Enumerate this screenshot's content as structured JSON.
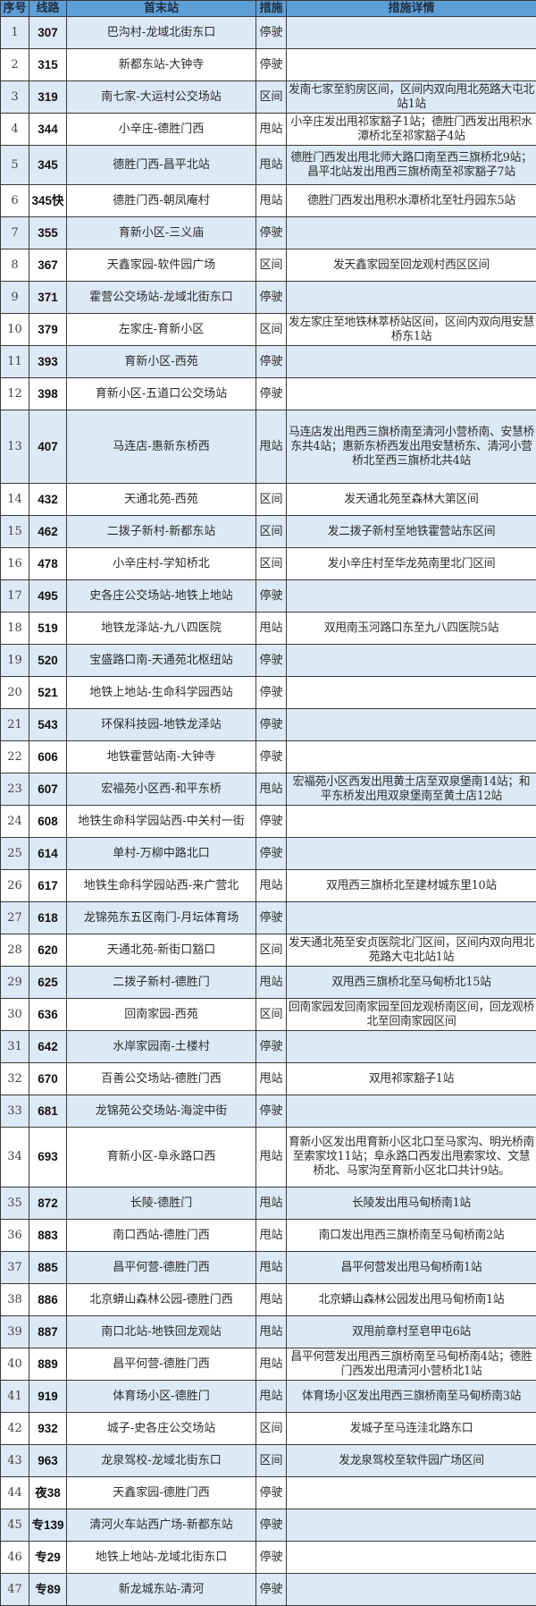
{
  "headers": [
    "序号",
    "线路",
    "首末站",
    "措施",
    "措施详情"
  ],
  "colors": {
    "header_bg": "#5e9fd8",
    "row_alt_bg": "#dce9f6",
    "border": "#3a3a3a"
  },
  "rows": [
    {
      "no": "1",
      "line": "307",
      "stops": "巴沟村-龙域北街东口",
      "measure": "停驶",
      "detail": ""
    },
    {
      "no": "2",
      "line": "315",
      "stops": "新都东站-大钟寺",
      "measure": "停驶",
      "detail": ""
    },
    {
      "no": "3",
      "line": "319",
      "stops": "南七家-大运村公交场站",
      "measure": "区间",
      "detail": "发南七家至豹房区间，区间内双向甩北苑路大屯北站1站"
    },
    {
      "no": "4",
      "line": "344",
      "stops": "小辛庄-德胜门西",
      "measure": "甩站",
      "detail": "小辛庄发出甩祁家豁子1站；德胜门西发出甩积水潭桥北至祁家豁子4站"
    },
    {
      "no": "5",
      "line": "345",
      "stops": "德胜门西-昌平北站",
      "measure": "甩站",
      "detail": "德胜门西发出甩北师大路口南至西三旗桥北9站；昌平北站发出甩西三旗桥南至祁家豁子7站"
    },
    {
      "no": "6",
      "line": "345快",
      "stops": "德胜门西-朝凤庵村",
      "measure": "甩站",
      "detail": "德胜门西发出甩积水潭桥北至牡丹园东5站"
    },
    {
      "no": "7",
      "line": "355",
      "stops": "育新小区-三义庙",
      "measure": "停驶",
      "detail": ""
    },
    {
      "no": "8",
      "line": "367",
      "stops": "天鑫家园-软件园广场",
      "measure": "区间",
      "detail": "发天鑫家园至回龙观村西区区间"
    },
    {
      "no": "9",
      "line": "371",
      "stops": "霍营公交场站-龙域北街东口",
      "measure": "停驶",
      "detail": ""
    },
    {
      "no": "10",
      "line": "379",
      "stops": "左家庄-育新小区",
      "measure": "区间",
      "detail": "发左家庄至地铁林萃桥站区间，区间内双向甩安慧桥东1站"
    },
    {
      "no": "11",
      "line": "393",
      "stops": "育新小区-西苑",
      "measure": "停驶",
      "detail": ""
    },
    {
      "no": "12",
      "line": "398",
      "stops": "育新小区-五道口公交场站",
      "measure": "停驶",
      "detail": ""
    },
    {
      "no": "13",
      "line": "407",
      "stops": "马连店-惠新东桥西",
      "measure": "甩站",
      "detail": "马连店发出甩西三旗桥南至清河小营桥南、安慧桥东共4站；惠新东桥西发出甩安慧桥东、清河小营桥北至西三旗桥北共4站"
    },
    {
      "no": "14",
      "line": "432",
      "stops": "天通北苑-西苑",
      "measure": "区间",
      "detail": "发天通北苑至森林大第区间"
    },
    {
      "no": "15",
      "line": "462",
      "stops": "二拨子新村-新都东站",
      "measure": "区间",
      "detail": "发二拨子新村至地铁霍营站东区间"
    },
    {
      "no": "16",
      "line": "478",
      "stops": "小辛庄村-学知桥北",
      "measure": "区间",
      "detail": "发小辛庄村至华龙苑南里北门区间"
    },
    {
      "no": "17",
      "line": "495",
      "stops": "史各庄公交场站-地铁上地站",
      "measure": "停驶",
      "detail": ""
    },
    {
      "no": "18",
      "line": "519",
      "stops": "地铁龙泽站-九八四医院",
      "measure": "甩站",
      "detail": "双甩南玉河路口东至九八四医院5站"
    },
    {
      "no": "19",
      "line": "520",
      "stops": "宝盛路口南-天通苑北枢纽站",
      "measure": "停驶",
      "detail": ""
    },
    {
      "no": "20",
      "line": "521",
      "stops": "地铁上地站-生命科学园西站",
      "measure": "停驶",
      "detail": ""
    },
    {
      "no": "21",
      "line": "543",
      "stops": "环保科技园-地铁龙泽站",
      "measure": "停驶",
      "detail": ""
    },
    {
      "no": "22",
      "line": "606",
      "stops": "地铁霍营站南-大钟寺",
      "measure": "停驶",
      "detail": ""
    },
    {
      "no": "23",
      "line": "607",
      "stops": "宏福苑小区西-和平东桥",
      "measure": "甩站",
      "detail": "宏福苑小区西发出甩黄土店至双泉堡南14站；和平东桥发出甩双泉堡南至黄土店12站"
    },
    {
      "no": "24",
      "line": "608",
      "stops": "地铁生命科学园站西-中关村一街",
      "measure": "停驶",
      "detail": ""
    },
    {
      "no": "25",
      "line": "614",
      "stops": "单村-万柳中路北口",
      "measure": "停驶",
      "detail": ""
    },
    {
      "no": "26",
      "line": "617",
      "stops": "地铁生命科学园站西-来广营北",
      "measure": "甩站",
      "detail": "双甩西三旗桥北至建材城东里10站"
    },
    {
      "no": "27",
      "line": "618",
      "stops": "龙锦苑东五区南门-月坛体育场",
      "measure": "停驶",
      "detail": ""
    },
    {
      "no": "28",
      "line": "620",
      "stops": "天通北苑-新街口豁口",
      "measure": "区间",
      "detail": "发天通北苑至安贞医院北门区间，区间内双向甩北苑路大屯北站1站"
    },
    {
      "no": "29",
      "line": "625",
      "stops": "二拨子新村-德胜门",
      "measure": "甩站",
      "detail": "双甩西三旗桥北至马甸桥北15站"
    },
    {
      "no": "30",
      "line": "636",
      "stops": "回南家园-西苑",
      "measure": "区间",
      "detail": "回南家园发回南家园至回龙观桥南区间，回龙观桥北至回南家园区间"
    },
    {
      "no": "31",
      "line": "642",
      "stops": "水岸家园南-土楼村",
      "measure": "停驶",
      "detail": ""
    },
    {
      "no": "32",
      "line": "670",
      "stops": "百善公交场站-德胜门西",
      "measure": "甩站",
      "detail": "双甩祁家豁子1站"
    },
    {
      "no": "33",
      "line": "681",
      "stops": "龙锦苑公交场站-海淀中街",
      "measure": "停驶",
      "detail": ""
    },
    {
      "no": "34",
      "line": "693",
      "stops": "育新小区-阜永路口西",
      "measure": "甩站",
      "detail": "育新小区发出甩育新小区北口至马家沟、明光桥南至索家坟11站；阜永路口西发出甩索家坟、文慧桥北、马家沟至育新小区北口共计9站。"
    },
    {
      "no": "35",
      "line": "872",
      "stops": "长陵-德胜门",
      "measure": "甩站",
      "detail": "长陵发出甩马甸桥南1站"
    },
    {
      "no": "36",
      "line": "883",
      "stops": "南口西站-德胜门西",
      "measure": "甩站",
      "detail": "南口发出甩西三旗桥南至马甸桥南2站"
    },
    {
      "no": "37",
      "line": "885",
      "stops": "昌平何营-德胜门西",
      "measure": "甩站",
      "detail": "昌平何营发出甩马甸桥南1站"
    },
    {
      "no": "38",
      "line": "886",
      "stops": "北京蟒山森林公园-德胜门西",
      "measure": "甩站",
      "detail": "北京蟒山森林公园发出甩马甸桥南1站"
    },
    {
      "no": "39",
      "line": "887",
      "stops": "南口北站-地铁回龙观站",
      "measure": "甩站",
      "detail": "双甩前章村至皂甲屯6站"
    },
    {
      "no": "40",
      "line": "889",
      "stops": "昌平何营-德胜门西",
      "measure": "甩站",
      "detail": "昌平何营发出甩西三旗桥南至马甸桥南4站；德胜门西发出甩清河小营桥北1站"
    },
    {
      "no": "41",
      "line": "919",
      "stops": "体育场小区-德胜门",
      "measure": "甩站",
      "detail": "体育场小区发出甩西三旗桥南至马甸桥南3站"
    },
    {
      "no": "42",
      "line": "932",
      "stops": "城子-史各庄公交场站",
      "measure": "区间",
      "detail": "发城子至马连洼北路东口"
    },
    {
      "no": "43",
      "line": "963",
      "stops": "龙泉驾校-龙域北街东口",
      "measure": "区间",
      "detail": "发龙泉驾校至软件园广场区间"
    },
    {
      "no": "44",
      "line": "夜38",
      "stops": "天鑫家园-德胜门西",
      "measure": "停驶",
      "detail": ""
    },
    {
      "no": "45",
      "line": "专139",
      "stops": "清河火车站西广场-新都东站",
      "measure": "停驶",
      "detail": ""
    },
    {
      "no": "46",
      "line": "专29",
      "stops": "地铁上地站-龙域北街东口",
      "measure": "停驶",
      "detail": ""
    },
    {
      "no": "47",
      "line": "专89",
      "stops": "新龙城东站-清河",
      "measure": "停驶",
      "detail": ""
    }
  ]
}
